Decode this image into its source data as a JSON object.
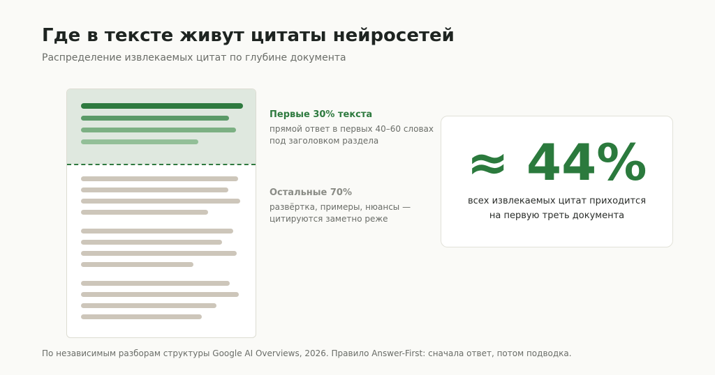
{
  "header": {
    "title": "Где в тексте живут цитаты нейросетей",
    "subtitle": "Распределение извлекаемых цитат по глубине документа"
  },
  "document_illustration": {
    "top_share_percent": 30,
    "colors": {
      "top_background": "#dfe8df",
      "divider": "#2f7a3f",
      "top_lines": [
        "#2e7a3f",
        "#5a9a67",
        "#7cb083",
        "#93bf98"
      ],
      "body_lines": "#cdc6ba"
    }
  },
  "segments": [
    {
      "title": "Первые 30% текста",
      "desc_line1": "прямой ответ в первых 40–60 словах",
      "desc_line2": "под заголовком раздела",
      "color": "#2e7a3f"
    },
    {
      "title": "Остальные 70%",
      "desc_line1": "развёртка, примеры, нюансы —",
      "desc_line2": "цитируются заметно реже",
      "color": "#8a8c86"
    }
  ],
  "stat_card": {
    "value": "≈ 44%",
    "caption_line1": "всех извлекаемых цитат приходится",
    "caption_line2": "на первую треть документа",
    "color": "#2b7a3d"
  },
  "footnote": "По независимым разборам структуры Google AI Overviews, 2026. Правило Answer-First: сначала ответ, потом подводка."
}
